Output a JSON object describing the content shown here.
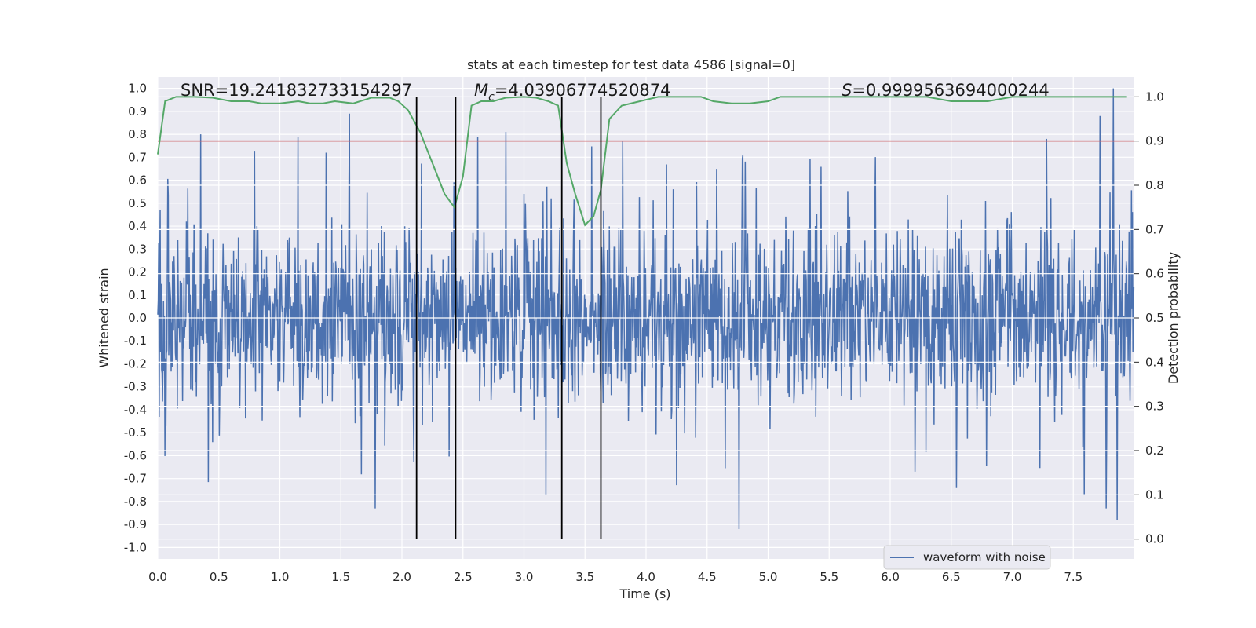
{
  "chart_data": {
    "type": "line",
    "title": "stats at each timestep for test data 4586 [signal=0]",
    "xlabel": "Time (s)",
    "ylabel_left": "Whitened strain",
    "ylabel_right": "Detection probability",
    "xlim": [
      0.0,
      8.0
    ],
    "ylim_left": [
      -1.05,
      1.05
    ],
    "ylim_right": [
      -0.045,
      1.045
    ],
    "x_ticks": [
      "0.0",
      "0.5",
      "1.0",
      "1.5",
      "2.0",
      "2.5",
      "3.0",
      "3.5",
      "4.0",
      "4.5",
      "5.0",
      "5.5",
      "6.0",
      "6.5",
      "7.0",
      "7.5"
    ],
    "y_left_ticks": [
      "-1.0",
      "-0.9",
      "-0.8",
      "-0.7",
      "-0.6",
      "-0.5",
      "-0.4",
      "-0.3",
      "-0.2",
      "-0.1",
      "0.0",
      "0.1",
      "0.2",
      "0.3",
      "0.4",
      "0.5",
      "0.6",
      "0.7",
      "0.8",
      "0.9",
      "1.0"
    ],
    "y_right_ticks": [
      "0.0",
      "0.1",
      "0.2",
      "0.3",
      "0.4",
      "0.5",
      "0.6",
      "0.7",
      "0.8",
      "0.9",
      "1.0"
    ],
    "annotations": {
      "snr": "SNR=19.241832733154297",
      "mc": "=4.03906774520874",
      "mc_symbol": "M",
      "mc_sub": "c",
      "s_value": "=0.9999563694000244",
      "s_symbol": "S"
    },
    "legend": {
      "label": "waveform with noise",
      "position": "lower-right"
    },
    "threshold_right": 0.9,
    "vertical_lines_x": [
      2.12,
      2.44,
      3.31,
      3.63
    ],
    "series": [
      {
        "name": "waveform with noise",
        "axis": "left",
        "color": "#4c72b0",
        "sample_rate": 256,
        "duration": 8.0,
        "envelope": 0.28,
        "spike_peaks": [
          {
            "x": 0.35,
            "y": 0.8
          },
          {
            "x": 1.15,
            "y": 0.79
          },
          {
            "x": 1.38,
            "y": 0.72
          },
          {
            "x": 1.57,
            "y": 0.89
          },
          {
            "x": 2.62,
            "y": 0.79
          },
          {
            "x": 2.85,
            "y": 0.81
          },
          {
            "x": 7.83,
            "y": 1.0
          },
          {
            "x": 7.72,
            "y": 0.88
          },
          {
            "x": 7.28,
            "y": 0.78
          },
          {
            "x": 1.78,
            "y": -0.83
          },
          {
            "x": 4.76,
            "y": -0.92
          },
          {
            "x": 7.86,
            "y": -0.88
          },
          {
            "x": 7.77,
            "y": -0.83
          },
          {
            "x": 3.18,
            "y": -0.77
          }
        ]
      },
      {
        "name": "detection probability",
        "axis": "right",
        "color": "#55a868",
        "x": [
          0.0,
          0.06,
          0.15,
          0.3,
          0.45,
          0.6,
          0.75,
          0.85,
          1.0,
          1.15,
          1.25,
          1.35,
          1.45,
          1.6,
          1.75,
          1.9,
          1.97,
          2.05,
          2.15,
          2.25,
          2.35,
          2.43,
          2.5,
          2.57,
          2.65,
          2.75,
          2.85,
          3.0,
          3.1,
          3.2,
          3.28,
          3.35,
          3.42,
          3.5,
          3.57,
          3.63,
          3.7,
          3.8,
          3.95,
          4.1,
          4.3,
          4.45,
          4.55,
          4.7,
          4.85,
          5.0,
          5.1,
          5.3,
          5.5,
          5.7,
          5.9,
          6.1,
          6.3,
          6.5,
          6.6,
          6.8,
          7.0,
          7.2,
          7.4,
          7.6,
          7.8,
          7.94
        ],
        "y": [
          0.87,
          0.99,
          1.0,
          1.0,
          0.998,
          0.99,
          0.99,
          0.985,
          0.985,
          0.99,
          0.985,
          0.985,
          0.99,
          0.985,
          0.998,
          0.998,
          0.99,
          0.97,
          0.92,
          0.85,
          0.78,
          0.75,
          0.82,
          0.98,
          0.99,
          0.99,
          0.998,
          1.0,
          0.998,
          0.99,
          0.98,
          0.85,
          0.78,
          0.71,
          0.73,
          0.79,
          0.95,
          0.98,
          0.99,
          1.0,
          1.0,
          1.0,
          0.99,
          0.985,
          0.985,
          0.99,
          1.0,
          1.0,
          1.0,
          1.0,
          1.0,
          1.0,
          1.0,
          0.99,
          0.99,
          0.99,
          1.0,
          1.0,
          1.0,
          1.0,
          1.0,
          1.0
        ]
      }
    ],
    "colors": {
      "plot_bg": "#eaeaf2",
      "grid": "#ffffff",
      "threshold": "#c44e52",
      "vline": "#000000",
      "text": "#262626"
    }
  }
}
